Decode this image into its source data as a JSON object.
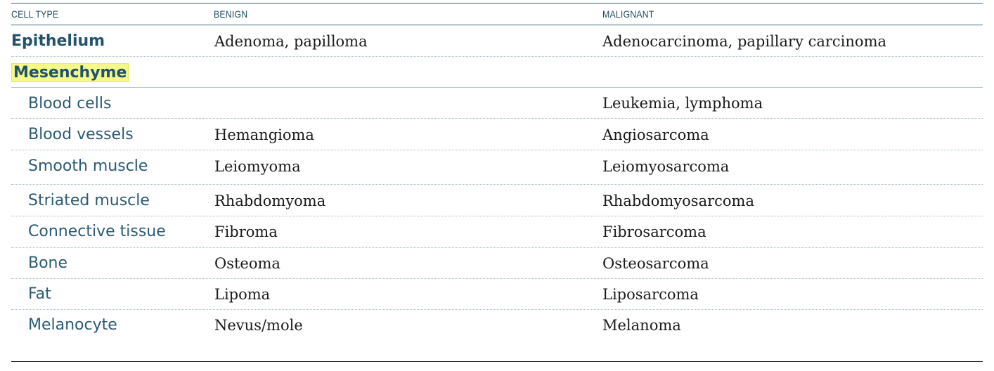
{
  "columns": {
    "cell_type": "CELL TYPE",
    "benign": "BENIGN",
    "malignant": "MALIGNANT"
  },
  "rows": [
    {
      "cell_type": "Epithelium",
      "benign": "Adenoma, papilloma",
      "malignant": "Adenocarcinoma, papillary carcinoma"
    },
    {
      "cell_type": "Mesenchyme",
      "benign": "",
      "malignant": ""
    },
    {
      "cell_type": "Blood cells",
      "benign": "",
      "malignant": "Leukemia, lymphoma"
    },
    {
      "cell_type": "Blood vessels",
      "benign": "Hemangioma",
      "malignant": "Angiosarcoma"
    },
    {
      "cell_type": "Smooth muscle",
      "benign": "Leiomyoma",
      "malignant": "Leiomyosarcoma"
    },
    {
      "cell_type": "Striated muscle",
      "benign": "Rhabdomyoma",
      "malignant": "Rhabdomyosarcoma"
    },
    {
      "cell_type": "Connective tissue",
      "benign": "Fibroma",
      "malignant": "Fibrosarcoma"
    },
    {
      "cell_type": "Bone",
      "benign": "Osteoma",
      "malignant": "Osteosarcoma"
    },
    {
      "cell_type": "Fat",
      "benign": "Lipoma",
      "malignant": "Liposarcoma"
    },
    {
      "cell_type": "Melanocyte",
      "benign": "Nevus/mole",
      "malignant": "Melanoma"
    }
  ],
  "highlight_color": "#f4f98a"
}
